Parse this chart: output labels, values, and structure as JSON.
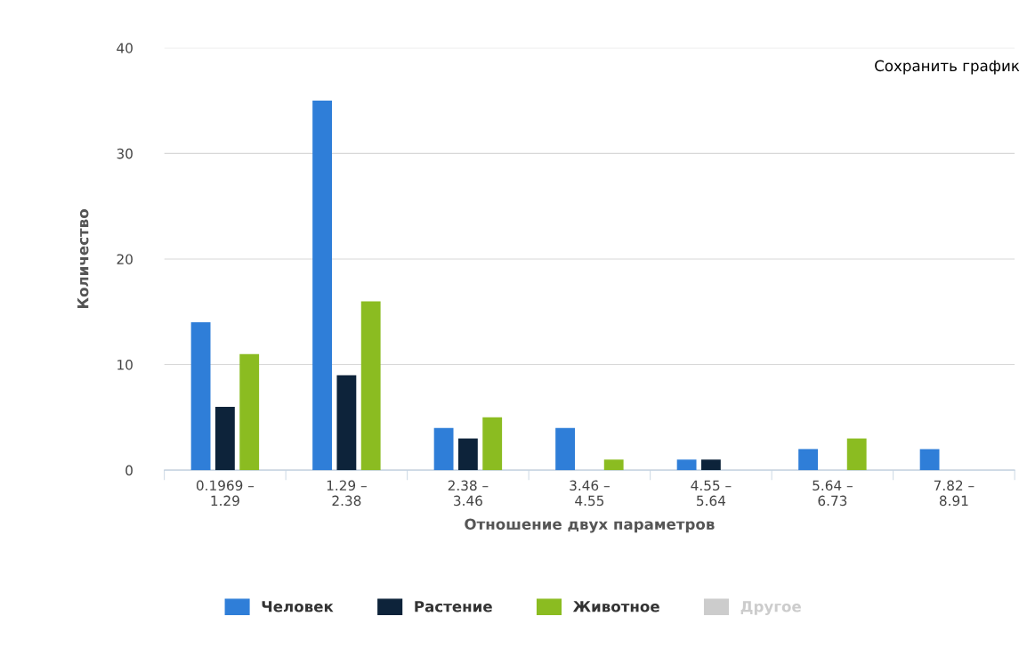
{
  "chart_data": {
    "type": "bar",
    "xlabel": "Отношение двух параметров",
    "ylabel": "Количество",
    "categories": [
      "0.1969 –\n1.29",
      "1.29 –\n2.38",
      "2.38 –\n3.46",
      "3.46 –\n4.55",
      "4.55 –\n5.64",
      "5.64 –\n6.73",
      "7.82 –\n8.91"
    ],
    "series": [
      {
        "name": "Человек",
        "color": "#2f7ed8",
        "values": [
          14,
          35,
          4,
          4,
          1,
          2,
          2
        ]
      },
      {
        "name": "Растение",
        "color": "#0d233a",
        "values": [
          6,
          9,
          3,
          0,
          1,
          0,
          0
        ]
      },
      {
        "name": "Животное",
        "color": "#8bbc21",
        "values": [
          11,
          16,
          5,
          1,
          0,
          3,
          0
        ]
      },
      {
        "name": "Другое",
        "color": "#cccccc",
        "values": [
          null,
          null,
          null,
          null,
          null,
          null,
          null
        ]
      }
    ],
    "ylim": [
      0,
      40
    ],
    "yticks": [
      0,
      10,
      20,
      30,
      40
    ],
    "grid": "y",
    "legend": "bottom",
    "annotations": [
      "Сохранить график"
    ]
  }
}
